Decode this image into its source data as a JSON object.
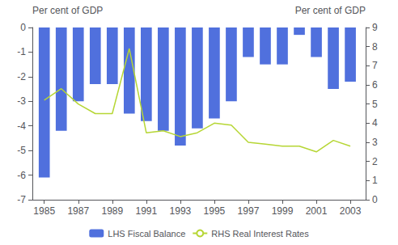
{
  "chart_data": {
    "type": "bar",
    "x": [
      1985,
      1986,
      1987,
      1988,
      1989,
      1990,
      1991,
      1992,
      1993,
      1994,
      1995,
      1996,
      1997,
      1998,
      1999,
      2000,
      2001,
      2002,
      2003
    ],
    "series": [
      {
        "name": "LHS Fiscal Balance",
        "type": "bar",
        "values": [
          -6.1,
          -4.2,
          -3.0,
          -2.3,
          -2.3,
          -3.5,
          -3.8,
          -4.2,
          -4.8,
          -4.1,
          -3.7,
          -3.0,
          -1.2,
          -1.5,
          -1.5,
          -0.3,
          -1.2,
          -2.5,
          -2.2
        ]
      },
      {
        "name": "RHS Real Interest Rates",
        "type": "line",
        "axis": "y2",
        "values": [
          5.2,
          5.8,
          5.0,
          4.5,
          4.5,
          7.9,
          3.5,
          3.6,
          3.3,
          3.5,
          4.0,
          3.9,
          3.0,
          2.9,
          2.8,
          2.8,
          2.5,
          3.1,
          2.8
        ]
      }
    ],
    "xlim": [
      1984.3,
      2003.9
    ],
    "xticks": [
      1985,
      1987,
      1989,
      1991,
      1993,
      1995,
      1997,
      1999,
      2001,
      2003
    ],
    "ylim": [
      -7,
      0
    ],
    "yticks": [
      0,
      -1,
      -2,
      -3,
      -4,
      -5,
      -6,
      -7
    ],
    "y2lim": [
      0,
      9
    ],
    "y2ticks": [
      0,
      1,
      2,
      3,
      4,
      5,
      6,
      7,
      8,
      9
    ],
    "ylabel": "Per cent of GDP",
    "y2label": "Per cent of GDP",
    "grid": false,
    "legend": "bottom"
  }
}
